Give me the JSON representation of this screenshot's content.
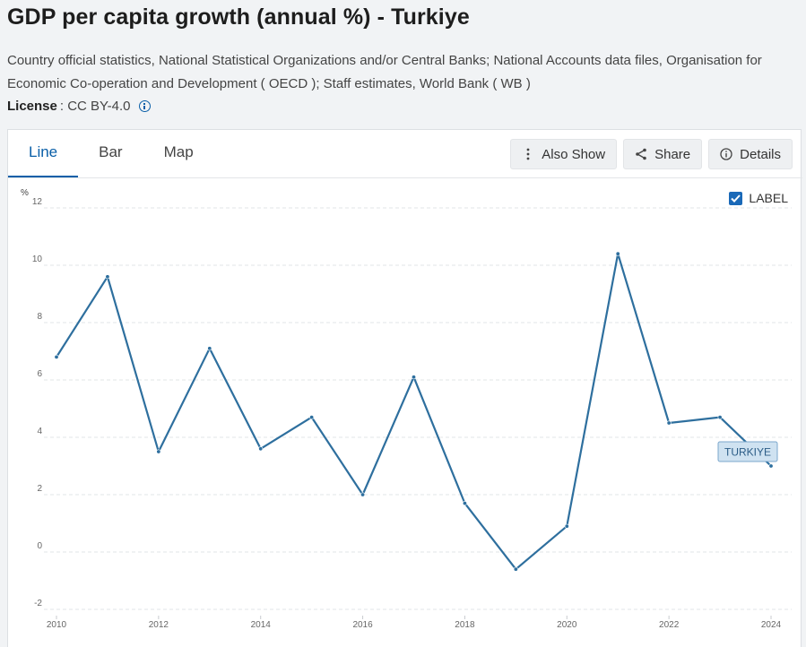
{
  "page": {
    "title": "GDP per capita growth (annual %) - Turkiye",
    "source": "Country official statistics, National Statistical Organizations and/or Central Banks; National Accounts data files, Organisation for Economic Co-operation and Development ( OECD ); Staff estimates, World Bank ( WB )",
    "license_label": "License",
    "license_value": ": CC BY-4.0"
  },
  "tabs": [
    {
      "label": "Line",
      "active": true
    },
    {
      "label": "Bar",
      "active": false
    },
    {
      "label": "Map",
      "active": false
    }
  ],
  "actions": {
    "also_show": "Also Show",
    "share": "Share",
    "details": "Details"
  },
  "label_toggle": {
    "label": "LABEL",
    "checked": true
  },
  "colors": {
    "line": "#2e6f9e",
    "accent": "#0a5fa8",
    "tag_bg": "#cfe2f1",
    "tag_border": "#7ba7cc"
  },
  "chart_data": {
    "type": "line",
    "ylabel": "%",
    "ylim": [
      -2,
      12
    ],
    "yticks": [
      -2,
      0,
      2,
      4,
      6,
      8,
      10,
      12
    ],
    "xticks": [
      2010,
      2012,
      2014,
      2016,
      2018,
      2020,
      2022,
      2024
    ],
    "grid": true,
    "series": [
      {
        "name": "TURKIYE",
        "x": [
          2010,
          2011,
          2012,
          2013,
          2014,
          2015,
          2016,
          2017,
          2018,
          2019,
          2020,
          2021,
          2022,
          2023,
          2024
        ],
        "values": [
          6.8,
          9.6,
          3.5,
          7.1,
          3.6,
          4.7,
          2.0,
          6.1,
          1.7,
          -0.6,
          0.9,
          10.4,
          4.5,
          4.7,
          3.0
        ]
      }
    ]
  }
}
